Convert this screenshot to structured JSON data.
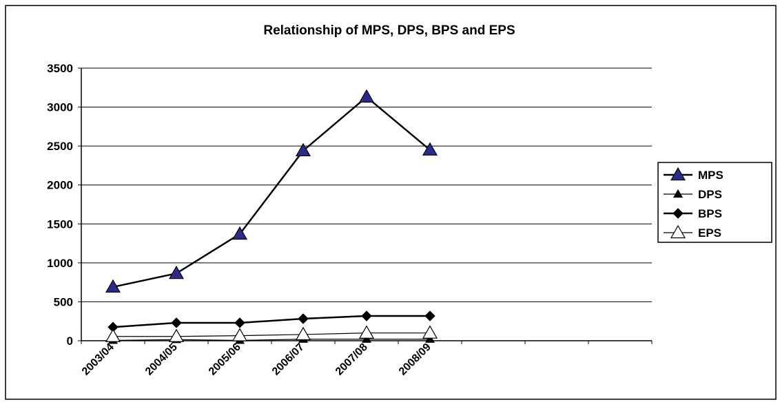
{
  "chart_data": {
    "type": "line",
    "title": "Relationship of MPS, DPS, BPS and EPS",
    "categories": [
      "2003/04",
      "2004/05",
      "2005/06",
      "2006/07",
      "2007/08",
      "2008/09",
      null,
      null,
      null
    ],
    "series": [
      {
        "name": "MPS",
        "color": "#000000",
        "marker": "triangle",
        "marker_fill": "#2b2b8c",
        "line_width": 2.5,
        "marker_size": 10,
        "values": [
          690,
          865,
          1370,
          2440,
          3130,
          2450,
          null,
          null,
          null
        ]
      },
      {
        "name": "DPS",
        "color": "#000000",
        "marker": "triangle",
        "marker_fill": "#000000",
        "line_width": 1.2,
        "marker_size": 6,
        "values": [
          5,
          15,
          5,
          20,
          20,
          20,
          null,
          null,
          null
        ]
      },
      {
        "name": "BPS",
        "color": "#000000",
        "marker": "diamond",
        "marker_fill": "#000000",
        "line_width": 2.5,
        "marker_size": 7,
        "values": [
          175,
          230,
          230,
          283,
          318,
          318,
          null,
          null,
          null
        ]
      },
      {
        "name": "EPS",
        "color": "#000000",
        "marker": "triangle",
        "marker_fill": "#ffffff",
        "line_width": 1.2,
        "marker_size": 10,
        "values": [
          55,
          55,
          65,
          80,
          100,
          100,
          null,
          null,
          null
        ]
      }
    ],
    "ylim": [
      0,
      3500
    ],
    "yticks": [
      0,
      500,
      1000,
      1500,
      2000,
      2500,
      3000,
      3500
    ],
    "grid": true,
    "legend": "right"
  }
}
